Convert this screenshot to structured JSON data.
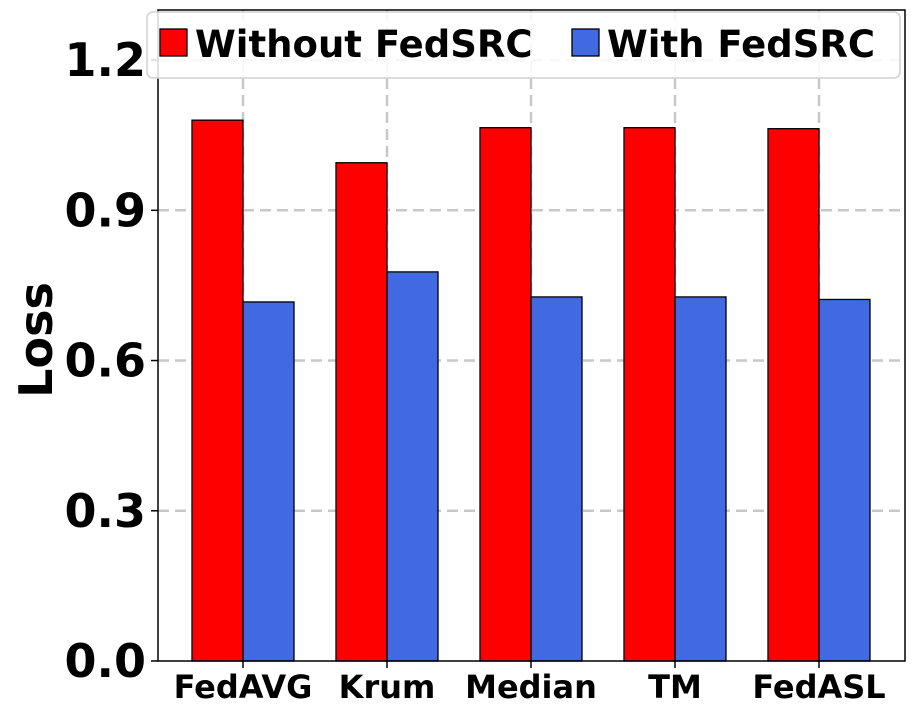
{
  "chart_data": {
    "type": "bar",
    "categories": [
      "FedAVG",
      "Krum",
      "Median",
      "TM",
      "FedASL"
    ],
    "series": [
      {
        "name": "Without FedSRC",
        "color": "#ff0000",
        "values": [
          1.08,
          0.995,
          1.065,
          1.065,
          1.063
        ]
      },
      {
        "name": "With FedSRC",
        "color": "#4169e1",
        "values": [
          0.717,
          0.777,
          0.727,
          0.727,
          0.722
        ]
      }
    ],
    "ylabel": "Loss",
    "xlabel": "",
    "ylim": [
      0,
      1.3
    ],
    "yticks": [
      "0.0",
      "0.3",
      "0.6",
      "0.9",
      "1.2"
    ],
    "ytick_values": [
      0,
      0.3,
      0.6,
      0.9,
      1.2
    ],
    "grid": true,
    "legend_position": "top"
  }
}
